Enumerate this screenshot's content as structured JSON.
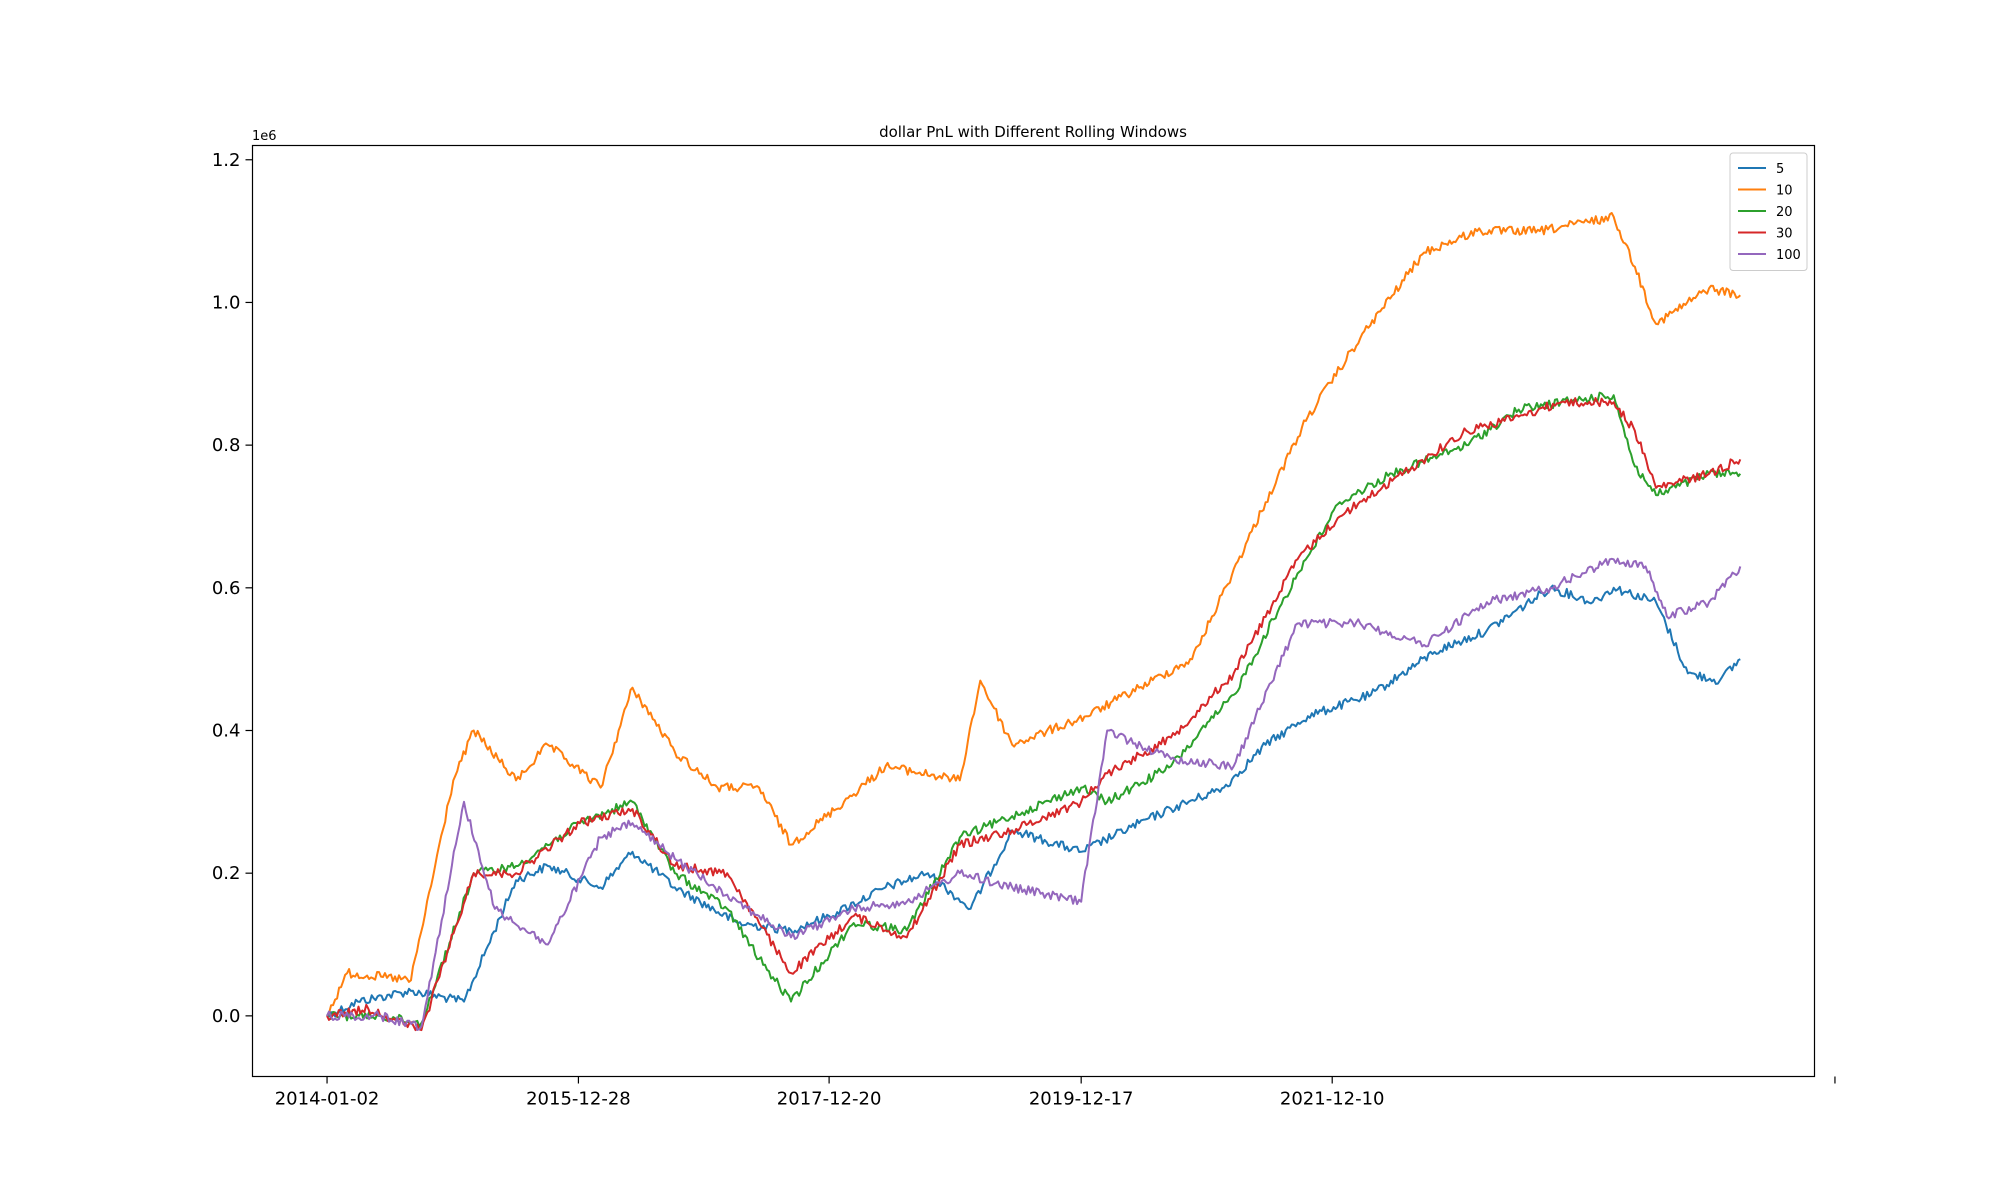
{
  "chart_data": {
    "type": "line",
    "title": "dollar PnL with Different Rolling Windows",
    "xlabel": "",
    "ylabel": "",
    "y_offset_label": "1e6",
    "ylim": [
      -0.085,
      1.22
    ],
    "xlim": [
      "2013-06-01",
      "2025-10-01"
    ],
    "x_ticks": [
      "2014-01-02",
      "2015-12-28",
      "2017-12-20",
      "2019-12-17",
      "2021-12-10"
    ],
    "y_ticks": [
      "0.0",
      "0.2",
      "0.4",
      "0.6",
      "0.8",
      "1.0",
      "1.2"
    ],
    "grid": false,
    "legend_position": "top-right",
    "series": [
      {
        "name": "5",
        "color": "#1f77b4",
        "x": [
          "2014-01-02",
          "2014-04-01",
          "2014-09-01",
          "2015-02-01",
          "2015-07-01",
          "2015-10-01",
          "2016-03-01",
          "2016-06-01",
          "2016-10-01",
          "2017-04-01",
          "2017-09-01",
          "2017-12-20",
          "2018-06-01",
          "2018-10-01",
          "2019-02-01",
          "2019-06-01",
          "2019-12-17",
          "2020-06-01",
          "2020-09-01",
          "2021-02-01",
          "2021-06-01",
          "2021-10-01",
          "2022-04-01",
          "2022-10-01",
          "2023-03-01",
          "2023-09-01",
          "2024-01-01",
          "2024-03-01",
          "2024-07-01",
          "2024-10-01",
          "2025-01-01",
          "2025-03-01"
        ],
        "values": [
          0.0,
          0.02,
          0.035,
          0.02,
          0.19,
          0.21,
          0.18,
          0.23,
          0.18,
          0.13,
          0.12,
          0.14,
          0.18,
          0.2,
          0.15,
          0.26,
          0.23,
          0.27,
          0.29,
          0.32,
          0.38,
          0.42,
          0.45,
          0.51,
          0.54,
          0.6,
          0.58,
          0.6,
          0.58,
          0.48,
          0.47,
          0.5
        ]
      },
      {
        "name": "10",
        "color": "#ff7f0e",
        "x": [
          "2014-01-02",
          "2014-03-01",
          "2014-09-01",
          "2015-01-01",
          "2015-03-01",
          "2015-07-01",
          "2015-10-01",
          "2016-03-01",
          "2016-06-01",
          "2016-10-01",
          "2017-02-01",
          "2017-06-01",
          "2017-09-01",
          "2018-02-01",
          "2018-06-01",
          "2019-01-01",
          "2019-03-01",
          "2019-06-01",
          "2020-01-01",
          "2020-06-01",
          "2020-11-01",
          "2021-06-01",
          "2021-10-01",
          "2022-03-01",
          "2022-09-01",
          "2023-02-01",
          "2023-08-01",
          "2024-03-01",
          "2024-05-01",
          "2024-07-01",
          "2024-12-01",
          "2025-03-01"
        ],
        "values": [
          0.0,
          0.06,
          0.05,
          0.33,
          0.4,
          0.33,
          0.38,
          0.32,
          0.46,
          0.37,
          0.32,
          0.32,
          0.24,
          0.3,
          0.35,
          0.33,
          0.47,
          0.38,
          0.42,
          0.46,
          0.5,
          0.72,
          0.84,
          0.95,
          1.07,
          1.1,
          1.1,
          1.12,
          1.05,
          0.97,
          1.02,
          1.01
        ]
      },
      {
        "name": "20",
        "color": "#2ca02c",
        "x": [
          "2014-01-02",
          "2014-06-01",
          "2014-10-01",
          "2015-03-01",
          "2015-07-01",
          "2016-01-01",
          "2016-06-01",
          "2016-10-01",
          "2017-03-01",
          "2017-06-01",
          "2017-09-01",
          "2018-03-01",
          "2018-08-01",
          "2019-01-01",
          "2019-06-01",
          "2019-12-17",
          "2020-03-01",
          "2020-09-01",
          "2021-03-01",
          "2021-09-01",
          "2022-01-01",
          "2022-06-01",
          "2023-01-01",
          "2023-06-01",
          "2023-10-01",
          "2024-03-01",
          "2024-05-01",
          "2024-07-01",
          "2024-12-01",
          "2025-03-01"
        ],
        "values": [
          0.0,
          0.0,
          -0.01,
          0.2,
          0.21,
          0.27,
          0.3,
          0.2,
          0.15,
          0.08,
          0.02,
          0.13,
          0.12,
          0.25,
          0.28,
          0.32,
          0.3,
          0.35,
          0.45,
          0.62,
          0.72,
          0.76,
          0.8,
          0.85,
          0.86,
          0.87,
          0.77,
          0.73,
          0.76,
          0.76
        ]
      },
      {
        "name": "30",
        "color": "#d62728",
        "x": [
          "2014-01-02",
          "2014-05-01",
          "2014-10-01",
          "2015-03-01",
          "2015-07-01",
          "2016-01-01",
          "2016-06-01",
          "2016-10-01",
          "2017-03-01",
          "2017-06-01",
          "2017-09-01",
          "2018-03-01",
          "2018-08-01",
          "2019-01-01",
          "2019-06-01",
          "2019-12-17",
          "2020-03-01",
          "2020-09-01",
          "2021-03-01",
          "2021-09-01",
          "2022-01-01",
          "2022-06-01",
          "2023-01-01",
          "2023-06-01",
          "2023-10-01",
          "2024-03-01",
          "2024-05-01",
          "2024-07-01",
          "2024-12-01",
          "2025-03-01"
        ],
        "values": [
          0.0,
          0.01,
          -0.02,
          0.2,
          0.2,
          0.27,
          0.29,
          0.21,
          0.2,
          0.13,
          0.06,
          0.14,
          0.11,
          0.24,
          0.26,
          0.3,
          0.34,
          0.39,
          0.48,
          0.64,
          0.7,
          0.75,
          0.82,
          0.84,
          0.86,
          0.86,
          0.82,
          0.74,
          0.76,
          0.78
        ]
      },
      {
        "name": "100",
        "color": "#9467bd",
        "x": [
          "2014-01-02",
          "2014-06-01",
          "2014-10-01",
          "2015-02-01",
          "2015-05-01",
          "2015-10-01",
          "2016-03-01",
          "2016-06-01",
          "2016-10-01",
          "2017-03-01",
          "2017-06-01",
          "2017-09-01",
          "2018-03-01",
          "2018-08-01",
          "2019-01-01",
          "2019-06-01",
          "2019-12-17",
          "2020-03-01",
          "2020-09-01",
          "2021-03-01",
          "2021-09-01",
          "2022-03-01",
          "2022-09-01",
          "2023-03-01",
          "2023-09-01",
          "2024-03-01",
          "2024-06-01",
          "2024-08-01",
          "2024-12-01",
          "2025-03-01"
        ],
        "values": [
          0.0,
          0.0,
          -0.015,
          0.3,
          0.15,
          0.1,
          0.25,
          0.27,
          0.22,
          0.17,
          0.14,
          0.11,
          0.15,
          0.16,
          0.2,
          0.18,
          0.16,
          0.4,
          0.36,
          0.35,
          0.55,
          0.55,
          0.52,
          0.58,
          0.6,
          0.64,
          0.63,
          0.56,
          0.58,
          0.63
        ]
      }
    ]
  }
}
